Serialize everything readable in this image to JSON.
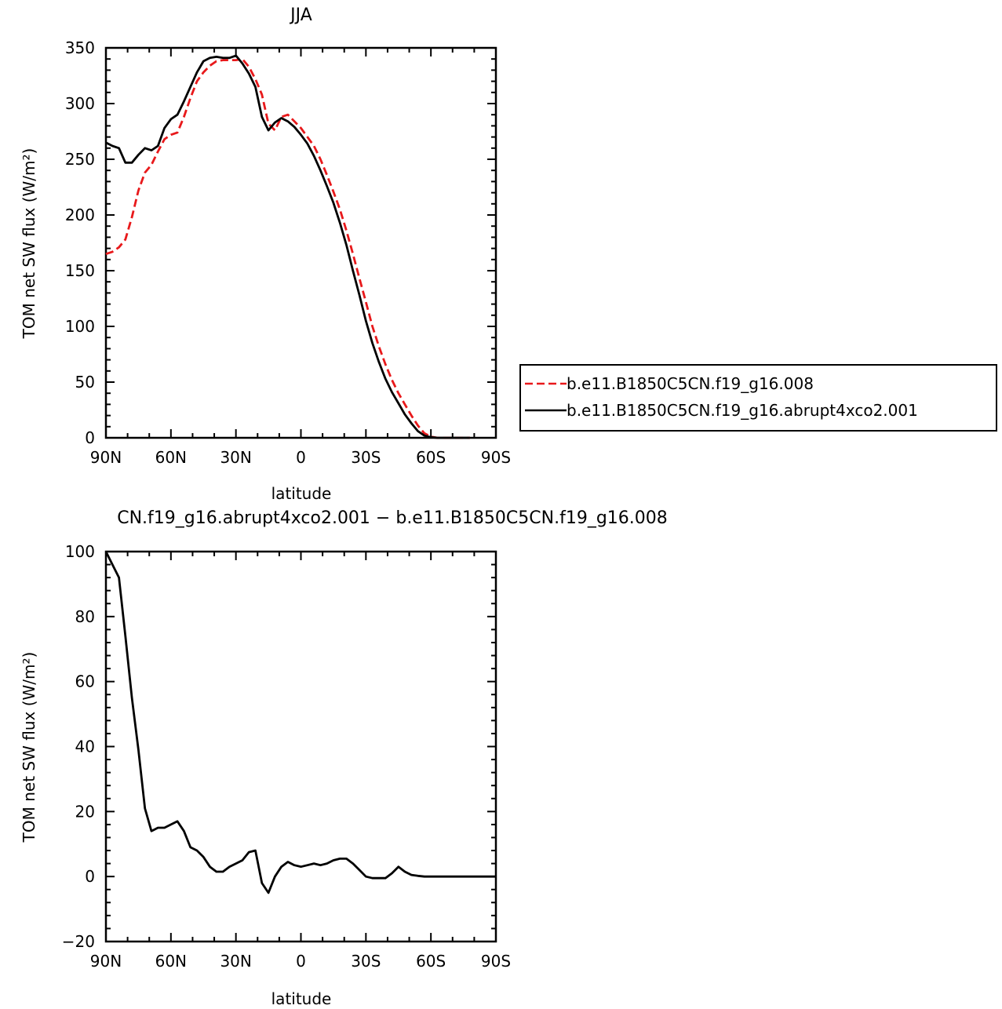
{
  "chart_data": [
    {
      "type": "line",
      "title": "JJA",
      "xlabel": "latitude",
      "ylabel": "TOM net SW flux (W/m²)",
      "xlim": [
        90,
        -90
      ],
      "ylim": [
        0,
        350
      ],
      "x_ticks": [
        90,
        60,
        30,
        0,
        -30,
        -60,
        -90
      ],
      "x_tick_labels": [
        "90N",
        "60N",
        "30N",
        "0",
        "30S",
        "60S",
        "90S"
      ],
      "y_ticks": [
        0,
        50,
        100,
        150,
        200,
        250,
        300,
        350
      ],
      "y_tick_labels": [
        "0",
        "50",
        "100",
        "150",
        "200",
        "250",
        "300",
        "350"
      ],
      "legend": "right",
      "series": [
        {
          "name": "b.e11.B1850C5CN.f19_g16.008",
          "color": "#e8191b",
          "dash": "dashed",
          "x": [
            90,
            87,
            84,
            81,
            78,
            75,
            72,
            69,
            66,
            63,
            60,
            57,
            54,
            51,
            48,
            45,
            42,
            39,
            36,
            33,
            30,
            27,
            24,
            21,
            18,
            15,
            12,
            9,
            6,
            3,
            0,
            -3,
            -6,
            -9,
            -12,
            -15,
            -18,
            -21,
            -24,
            -27,
            -30,
            -33,
            -36,
            -39,
            -42,
            -45,
            -48,
            -51,
            -54,
            -57,
            -60,
            -63,
            -66,
            -69,
            -72,
            -75,
            -78
          ],
          "y": [
            165,
            167,
            171,
            178,
            198,
            222,
            238,
            245,
            257,
            268,
            272,
            274,
            288,
            305,
            320,
            328,
            334,
            338,
            339,
            339,
            339,
            340,
            333,
            322,
            308,
            282,
            276,
            288,
            290,
            284,
            278,
            270,
            262,
            250,
            236,
            221,
            205,
            186,
            165,
            143,
            122,
            100,
            82,
            66,
            52,
            40,
            30,
            20,
            11,
            4,
            1,
            0,
            0,
            0,
            0,
            0,
            0
          ]
        },
        {
          "name": "b.e11.B1850C5CN.f19_g16.abrupt4xco2.001",
          "color": "#000000",
          "dash": "solid",
          "x": [
            90,
            87,
            84,
            81,
            78,
            75,
            72,
            69,
            66,
            63,
            60,
            57,
            54,
            51,
            48,
            45,
            42,
            39,
            36,
            33,
            30,
            27,
            24,
            21,
            18,
            15,
            12,
            9,
            6,
            3,
            0,
            -3,
            -6,
            -9,
            -12,
            -15,
            -18,
            -21,
            -24,
            -27,
            -30,
            -33,
            -36,
            -39,
            -42,
            -45,
            -48,
            -51,
            -54,
            -57,
            -60,
            -63,
            -66,
            -69,
            -72,
            -75,
            -78
          ],
          "y": [
            265,
            262,
            260,
            247,
            247,
            254,
            260,
            258,
            262,
            278,
            286,
            290,
            302,
            315,
            328,
            338,
            341,
            342,
            341,
            341,
            343,
            336,
            327,
            315,
            288,
            276,
            283,
            287,
            284,
            279,
            272,
            264,
            253,
            240,
            226,
            211,
            193,
            173,
            150,
            128,
            105,
            85,
            68,
            53,
            41,
            31,
            21,
            13,
            6,
            2,
            0.5,
            0,
            0,
            0,
            0,
            0,
            0
          ]
        }
      ]
    },
    {
      "type": "line",
      "title": "CN.f19_g16.abrupt4xco2.001 − b.e11.B1850C5CN.f19_g16.008",
      "xlabel": "latitude",
      "ylabel": "TOM net SW flux (W/m²)",
      "xlim": [
        90,
        -90
      ],
      "ylim": [
        -20,
        100
      ],
      "x_ticks": [
        90,
        60,
        30,
        0,
        -30,
        -60,
        -90
      ],
      "x_tick_labels": [
        "90N",
        "60N",
        "30N",
        "0",
        "30S",
        "60S",
        "90S"
      ],
      "y_ticks": [
        -20,
        0,
        20,
        40,
        60,
        80,
        100
      ],
      "y_tick_labels": [
        "−20",
        "0",
        "20",
        "40",
        "60",
        "80",
        "100"
      ],
      "series": [
        {
          "color": "#000000",
          "dash": "solid",
          "x": [
            90,
            87,
            84,
            81,
            78,
            75,
            72,
            69,
            66,
            63,
            60,
            57,
            54,
            51,
            48,
            45,
            42,
            39,
            36,
            33,
            30,
            27,
            24,
            21,
            18,
            15,
            12,
            9,
            6,
            3,
            0,
            -3,
            -6,
            -9,
            -12,
            -15,
            -18,
            -21,
            -24,
            -27,
            -30,
            -33,
            -36,
            -39,
            -42,
            -45,
            -48,
            -51,
            -54,
            -57,
            -60,
            -63,
            -66,
            -69,
            -72,
            -75,
            -78,
            -81,
            -84,
            -87,
            -90
          ],
          "y": [
            100,
            96,
            92,
            74,
            55,
            39,
            21,
            14,
            15,
            15,
            16,
            17,
            14,
            9,
            8,
            6,
            3,
            1.5,
            1.5,
            3,
            4,
            5,
            7.5,
            8,
            -2,
            -5,
            0,
            3,
            4.5,
            3.5,
            3,
            3.5,
            4,
            3.5,
            4,
            5,
            5.5,
            5.5,
            4,
            2,
            0,
            -0.5,
            -0.5,
            -0.5,
            1,
            3,
            1.5,
            0.5,
            0.2,
            0,
            0,
            0,
            0,
            0,
            0,
            0,
            0,
            0,
            0,
            0,
            0
          ]
        }
      ]
    }
  ]
}
